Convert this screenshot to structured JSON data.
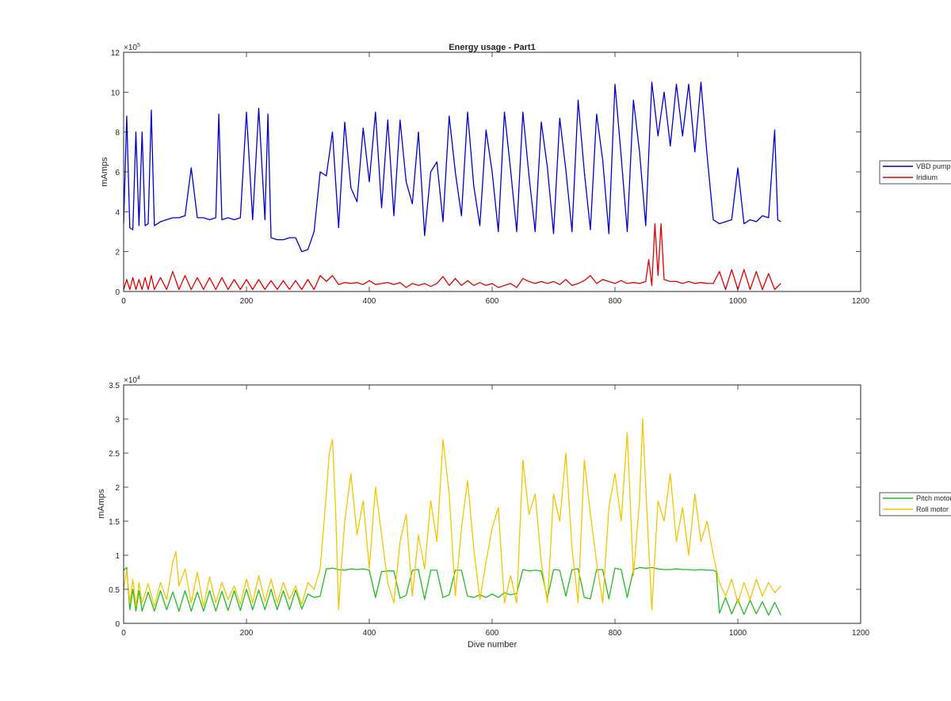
{
  "figure": {
    "title": "Energy usage - Part1"
  },
  "chart_data": [
    {
      "type": "line",
      "title": "Energy usage - Part1",
      "xlabel": "",
      "ylabel": "mAmps",
      "xlim": [
        0,
        1200
      ],
      "ylim": [
        0,
        1200000
      ],
      "xticks": [
        0,
        200,
        400,
        600,
        800,
        1000,
        1200
      ],
      "xtick_labels": [
        "0",
        "200",
        "400",
        "600",
        "800",
        "1000",
        "1200"
      ],
      "yticks": [
        0,
        200000,
        400000,
        600000,
        800000,
        1000000,
        1200000
      ],
      "ytick_labels": [
        "0",
        "2",
        "4",
        "6",
        "8",
        "10",
        "12"
      ],
      "y_exponent_label": "×10",
      "y_exponent": "5",
      "grid": false,
      "legend_position": "outside-right",
      "series": [
        {
          "name": "VBD pump",
          "color": "#0000CC",
          "x": [
            0,
            5,
            10,
            15,
            20,
            25,
            30,
            35,
            40,
            45,
            50,
            60,
            70,
            80,
            90,
            100,
            110,
            120,
            130,
            140,
            150,
            155,
            160,
            170,
            180,
            190,
            200,
            210,
            220,
            230,
            235,
            240,
            250,
            260,
            270,
            280,
            290,
            300,
            310,
            320,
            330,
            340,
            350,
            360,
            370,
            380,
            390,
            400,
            410,
            420,
            430,
            440,
            450,
            460,
            470,
            480,
            490,
            500,
            510,
            520,
            530,
            540,
            550,
            560,
            570,
            580,
            590,
            600,
            610,
            620,
            630,
            640,
            650,
            660,
            670,
            680,
            690,
            700,
            710,
            720,
            730,
            740,
            750,
            760,
            770,
            780,
            790,
            800,
            810,
            820,
            830,
            840,
            850,
            860,
            870,
            880,
            890,
            900,
            910,
            920,
            930,
            940,
            950,
            960,
            970,
            980,
            990,
            1000,
            1010,
            1020,
            1030,
            1040,
            1050,
            1060,
            1065,
            1070
          ],
          "values": [
            340000,
            880000,
            320000,
            310000,
            800000,
            330000,
            800000,
            330000,
            340000,
            910000,
            330000,
            350000,
            360000,
            370000,
            370000,
            380000,
            620000,
            370000,
            370000,
            360000,
            370000,
            890000,
            360000,
            370000,
            360000,
            370000,
            900000,
            360000,
            920000,
            360000,
            890000,
            270000,
            260000,
            260000,
            270000,
            270000,
            200000,
            210000,
            300000,
            600000,
            580000,
            800000,
            320000,
            850000,
            520000,
            450000,
            820000,
            550000,
            900000,
            420000,
            860000,
            380000,
            860000,
            550000,
            440000,
            800000,
            280000,
            600000,
            650000,
            350000,
            880000,
            600000,
            380000,
            900000,
            530000,
            330000,
            810000,
            600000,
            300000,
            900000,
            610000,
            300000,
            900000,
            580000,
            300000,
            850000,
            620000,
            290000,
            870000,
            610000,
            300000,
            960000,
            600000,
            310000,
            890000,
            660000,
            290000,
            1040000,
            680000,
            300000,
            960000,
            700000,
            330000,
            1050000,
            780000,
            1000000,
            730000,
            1040000,
            780000,
            1040000,
            700000,
            1050000,
            680000,
            360000,
            340000,
            350000,
            360000,
            620000,
            340000,
            360000,
            350000,
            380000,
            370000,
            810000,
            360000,
            350000
          ],
          "line_width": 1.3
        },
        {
          "name": "Iridium",
          "color": "#DD0000",
          "x": [
            0,
            5,
            10,
            15,
            20,
            25,
            30,
            35,
            40,
            45,
            50,
            60,
            70,
            80,
            90,
            100,
            110,
            120,
            130,
            140,
            150,
            160,
            170,
            180,
            190,
            200,
            210,
            220,
            230,
            240,
            250,
            260,
            270,
            280,
            290,
            300,
            310,
            320,
            330,
            340,
            350,
            360,
            370,
            380,
            390,
            400,
            410,
            420,
            430,
            440,
            450,
            460,
            470,
            480,
            490,
            500,
            510,
            520,
            530,
            540,
            550,
            560,
            570,
            580,
            590,
            600,
            610,
            620,
            630,
            640,
            650,
            660,
            670,
            680,
            690,
            700,
            710,
            720,
            730,
            740,
            750,
            760,
            770,
            780,
            790,
            800,
            810,
            820,
            830,
            840,
            850,
            855,
            860,
            865,
            870,
            875,
            880,
            890,
            900,
            910,
            920,
            930,
            940,
            950,
            960,
            970,
            980,
            990,
            1000,
            1010,
            1020,
            1030,
            1040,
            1050,
            1060,
            1070
          ],
          "values": [
            10000,
            60000,
            10000,
            70000,
            10000,
            60000,
            10000,
            70000,
            10000,
            80000,
            10000,
            70000,
            10000,
            100000,
            10000,
            80000,
            10000,
            70000,
            10000,
            70000,
            10000,
            70000,
            10000,
            60000,
            10000,
            60000,
            10000,
            60000,
            10000,
            55000,
            10000,
            55000,
            10000,
            55000,
            10000,
            60000,
            10000,
            80000,
            50000,
            80000,
            35000,
            45000,
            40000,
            45000,
            35000,
            55000,
            35000,
            40000,
            45000,
            35000,
            45000,
            20000,
            40000,
            30000,
            40000,
            25000,
            40000,
            75000,
            30000,
            65000,
            30000,
            55000,
            30000,
            45000,
            30000,
            40000,
            20000,
            30000,
            40000,
            20000,
            65000,
            50000,
            40000,
            50000,
            40000,
            50000,
            35000,
            60000,
            30000,
            40000,
            55000,
            80000,
            40000,
            60000,
            50000,
            40000,
            55000,
            40000,
            45000,
            40000,
            50000,
            160000,
            30000,
            340000,
            80000,
            340000,
            60000,
            50000,
            50000,
            40000,
            50000,
            40000,
            45000,
            40000,
            40000,
            100000,
            10000,
            110000,
            10000,
            110000,
            10000,
            100000,
            10000,
            90000,
            10000,
            40000
          ],
          "line_width": 1.3
        }
      ]
    },
    {
      "type": "line",
      "title": "",
      "xlabel": "Dive number",
      "ylabel": "mAmps",
      "xlim": [
        0,
        1200
      ],
      "ylim": [
        0,
        35000
      ],
      "xticks": [
        0,
        200,
        400,
        600,
        800,
        1000,
        1200
      ],
      "xtick_labels": [
        "0",
        "200",
        "400",
        "600",
        "800",
        "1000",
        "1200"
      ],
      "yticks": [
        0,
        5000,
        10000,
        15000,
        20000,
        25000,
        30000,
        35000
      ],
      "ytick_labels": [
        "0",
        "0.5",
        "1",
        "1.5",
        "2",
        "2.5",
        "3",
        "3.5"
      ],
      "y_exponent_label": "×10",
      "y_exponent": "4",
      "grid": false,
      "legend_position": "outside-right",
      "series": [
        {
          "name": "Pitch motor",
          "color": "#22BB22",
          "x": [
            0,
            5,
            10,
            15,
            20,
            25,
            30,
            40,
            50,
            60,
            70,
            80,
            90,
            100,
            110,
            120,
            130,
            140,
            150,
            160,
            170,
            180,
            190,
            200,
            210,
            220,
            230,
            240,
            250,
            260,
            270,
            280,
            290,
            300,
            310,
            320,
            330,
            340,
            350,
            360,
            370,
            380,
            390,
            400,
            410,
            420,
            430,
            440,
            450,
            460,
            470,
            480,
            490,
            500,
            510,
            520,
            530,
            540,
            550,
            560,
            570,
            580,
            590,
            600,
            610,
            620,
            630,
            640,
            650,
            660,
            670,
            680,
            690,
            700,
            710,
            720,
            730,
            740,
            750,
            760,
            770,
            780,
            790,
            800,
            810,
            820,
            830,
            840,
            850,
            860,
            870,
            880,
            890,
            900,
            910,
            920,
            930,
            940,
            950,
            960,
            965,
            970,
            980,
            990,
            1000,
            1010,
            1020,
            1030,
            1040,
            1050,
            1060,
            1070
          ],
          "values": [
            7800,
            8200,
            2000,
            5000,
            1800,
            4800,
            1800,
            4600,
            1800,
            4800,
            2000,
            4600,
            1800,
            4800,
            1800,
            4600,
            1800,
            4800,
            1800,
            4700,
            1900,
            4800,
            1900,
            5000,
            2000,
            4900,
            2000,
            5000,
            2000,
            4800,
            2000,
            4900,
            2100,
            4300,
            3800,
            4000,
            8000,
            8100,
            7900,
            7800,
            8000,
            7900,
            8000,
            7800,
            3800,
            7600,
            7700,
            7700,
            3700,
            4100,
            7800,
            7900,
            3500,
            7800,
            7800,
            3800,
            4200,
            7800,
            7800,
            4000,
            3800,
            4200,
            3800,
            4300,
            3800,
            4500,
            4200,
            4400,
            7900,
            7700,
            7800,
            7700,
            3700,
            7900,
            7800,
            4000,
            7900,
            8000,
            3800,
            3600,
            7900,
            7900,
            3600,
            8100,
            7900,
            3800,
            7900,
            8200,
            8100,
            8200,
            8000,
            7900,
            7900,
            8000,
            7900,
            7900,
            7800,
            7900,
            7800,
            7800,
            7600,
            1500,
            3800,
            1400,
            3500,
            1300,
            3400,
            1400,
            3200,
            1200,
            3100,
            1200
          ],
          "line_width": 1.3
        },
        {
          "name": "Roll motor",
          "color": "#F2C500",
          "x": [
            0,
            5,
            10,
            15,
            20,
            25,
            30,
            40,
            50,
            60,
            70,
            80,
            85,
            90,
            100,
            110,
            120,
            130,
            140,
            150,
            160,
            170,
            180,
            190,
            200,
            210,
            220,
            230,
            240,
            250,
            260,
            270,
            280,
            290,
            300,
            310,
            320,
            330,
            335,
            340,
            345,
            350,
            355,
            360,
            370,
            380,
            390,
            400,
            410,
            420,
            430,
            440,
            450,
            460,
            470,
            480,
            490,
            500,
            510,
            520,
            530,
            540,
            550,
            560,
            570,
            580,
            590,
            600,
            610,
            620,
            630,
            640,
            650,
            660,
            670,
            680,
            690,
            700,
            710,
            720,
            730,
            740,
            750,
            760,
            770,
            780,
            790,
            800,
            810,
            820,
            830,
            840,
            845,
            850,
            860,
            870,
            880,
            890,
            900,
            910,
            920,
            930,
            940,
            950,
            960,
            970,
            980,
            990,
            1000,
            1010,
            1020,
            1030,
            1040,
            1050,
            1060,
            1070
          ],
          "values": [
            5000,
            7800,
            3000,
            6500,
            2500,
            6000,
            3000,
            5800,
            2500,
            6000,
            3500,
            9000,
            10500,
            5500,
            8000,
            3000,
            7500,
            2500,
            6800,
            3000,
            6000,
            3500,
            5500,
            2800,
            6500,
            3000,
            7000,
            3200,
            6500,
            3000,
            6000,
            3500,
            5500,
            2800,
            6000,
            5000,
            8000,
            19000,
            25000,
            27000,
            17000,
            2000,
            9000,
            15000,
            22000,
            13000,
            18000,
            8000,
            20000,
            13000,
            6000,
            3000,
            12000,
            16000,
            4000,
            13000,
            8000,
            18000,
            12000,
            27000,
            19000,
            4000,
            14000,
            21000,
            11000,
            3500,
            9000,
            14000,
            17000,
            3000,
            7000,
            3000,
            24000,
            16000,
            19000,
            9000,
            3000,
            19000,
            15000,
            25000,
            11000,
            3000,
            24000,
            16000,
            9000,
            3000,
            17000,
            22000,
            15000,
            28000,
            7000,
            18000,
            30000,
            20000,
            2000,
            18000,
            15000,
            22000,
            12000,
            17000,
            10000,
            19000,
            12000,
            15000,
            10000,
            6000,
            4000,
            6500,
            3000,
            6000,
            3500,
            6500,
            4000,
            6000,
            4500,
            5500
          ],
          "line_width": 1.3
        }
      ]
    }
  ]
}
